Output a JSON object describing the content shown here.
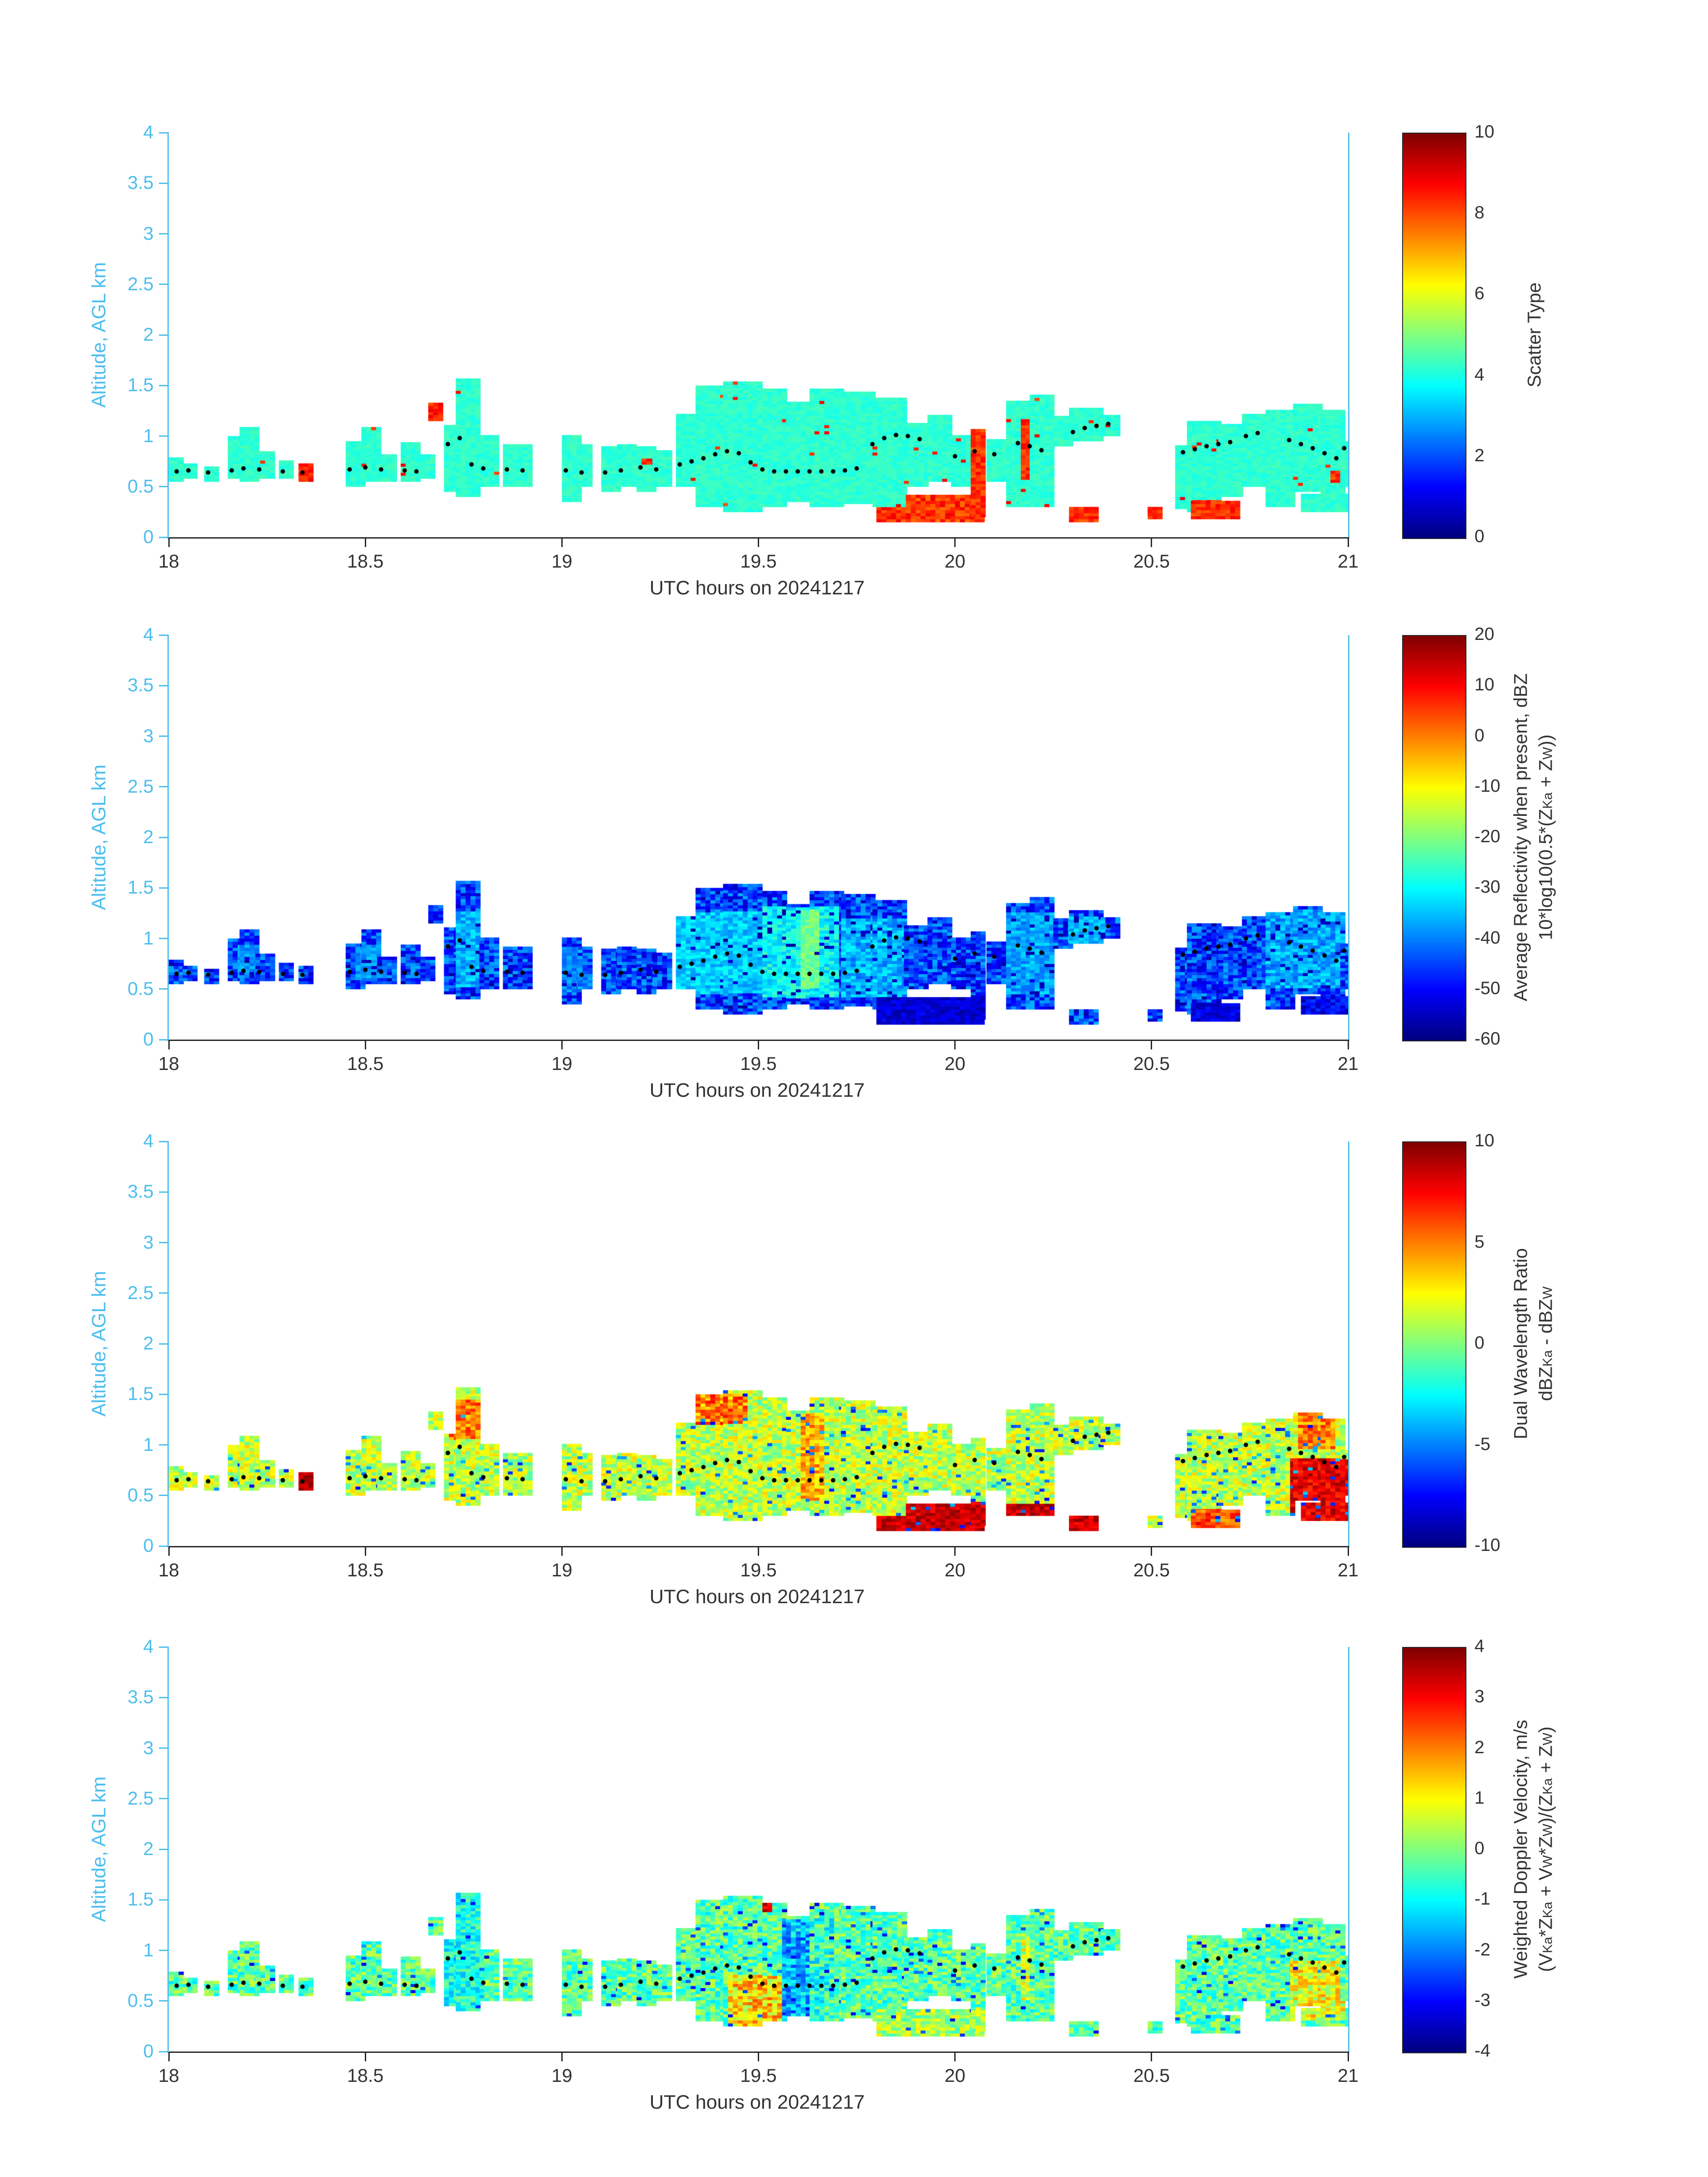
{
  "chart_data": {
    "type": "heatmap",
    "x_label": "UTC hours on 20241217",
    "y_label": "Altitude, AGL km",
    "x_range": [
      18,
      21
    ],
    "y_range": [
      0,
      4
    ],
    "x_tick_labels": [
      "18",
      "18.5",
      "19",
      "19.5",
      "20",
      "20.5",
      "21"
    ],
    "y_tick_labels": [
      "0",
      "0.5",
      "1",
      "1.5",
      "2",
      "2.5",
      "3",
      "3.5",
      "4"
    ],
    "axis_color_y": "#4DBEEE",
    "axis_color_x": "#262626",
    "colormap": "jet",
    "cell_dt_hours": 0.0125,
    "cell_dz_km": 0.03,
    "cloud_mask_rects": [
      [
        18.0,
        18.035,
        0.55,
        0.78
      ],
      [
        18.035,
        18.07,
        0.58,
        0.72
      ],
      [
        18.09,
        18.12,
        0.55,
        0.7
      ],
      [
        18.15,
        18.18,
        0.58,
        1.0
      ],
      [
        18.18,
        18.22,
        0.55,
        1.08
      ],
      [
        18.22,
        18.27,
        0.58,
        0.85
      ],
      [
        18.28,
        18.31,
        0.58,
        0.75
      ],
      [
        18.33,
        18.36,
        0.55,
        0.72
      ],
      [
        18.45,
        18.49,
        0.5,
        0.95
      ],
      [
        18.49,
        18.53,
        0.55,
        1.08
      ],
      [
        18.53,
        18.57,
        0.55,
        0.82
      ],
      [
        18.59,
        18.64,
        0.55,
        0.92
      ],
      [
        18.64,
        18.67,
        0.58,
        0.8
      ],
      [
        18.66,
        18.69,
        1.15,
        1.32
      ],
      [
        18.7,
        18.73,
        0.45,
        1.1
      ],
      [
        18.73,
        18.79,
        0.4,
        1.55
      ],
      [
        18.79,
        18.83,
        0.5,
        1.0
      ],
      [
        18.85,
        18.92,
        0.5,
        0.9
      ],
      [
        19.0,
        19.04,
        0.35,
        1.0
      ],
      [
        19.04,
        19.07,
        0.5,
        0.9
      ],
      [
        19.1,
        19.14,
        0.45,
        0.88
      ],
      [
        19.14,
        19.19,
        0.5,
        0.92
      ],
      [
        19.19,
        19.23,
        0.45,
        0.9
      ],
      [
        19.23,
        19.27,
        0.5,
        0.85
      ],
      [
        19.29,
        19.34,
        0.5,
        1.2
      ],
      [
        19.34,
        19.41,
        0.3,
        1.48
      ],
      [
        19.41,
        19.51,
        0.25,
        1.52
      ],
      [
        19.51,
        19.57,
        0.3,
        1.45
      ],
      [
        19.57,
        19.63,
        0.35,
        1.32
      ],
      [
        19.63,
        19.71,
        0.3,
        1.46
      ],
      [
        19.71,
        19.79,
        0.33,
        1.42
      ],
      [
        19.79,
        19.87,
        0.3,
        1.36
      ],
      [
        19.8,
        20.07,
        0.15,
        0.42
      ],
      [
        19.87,
        19.93,
        0.5,
        1.12
      ],
      [
        19.93,
        19.99,
        0.55,
        1.2
      ],
      [
        19.99,
        20.03,
        0.5,
        1.0
      ],
      [
        20.04,
        20.07,
        0.2,
        1.05
      ],
      [
        20.08,
        20.12,
        0.55,
        0.95
      ],
      [
        20.13,
        20.19,
        0.3,
        1.35
      ],
      [
        20.19,
        20.25,
        0.3,
        1.4
      ],
      [
        20.25,
        20.29,
        0.9,
        1.2
      ],
      [
        20.29,
        20.37,
        0.95,
        1.26
      ],
      [
        20.29,
        20.36,
        0.15,
        0.3
      ],
      [
        20.37,
        20.41,
        1.0,
        1.2
      ],
      [
        20.49,
        20.52,
        0.18,
        0.3
      ],
      [
        20.56,
        20.61,
        0.28,
        0.9
      ],
      [
        20.59,
        20.67,
        0.25,
        1.15
      ],
      [
        20.6,
        20.72,
        0.18,
        0.36
      ],
      [
        20.67,
        20.73,
        0.4,
        1.1
      ],
      [
        20.73,
        20.79,
        0.5,
        1.2
      ],
      [
        20.79,
        20.86,
        0.3,
        1.26
      ],
      [
        20.86,
        20.93,
        0.45,
        1.3
      ],
      [
        20.93,
        20.99,
        0.3,
        1.25
      ],
      [
        20.98,
        21.0,
        0.5,
        0.95
      ],
      [
        20.88,
        21.0,
        0.25,
        0.42
      ]
    ],
    "melting_layer_dots": [
      [
        18.02,
        0.65
      ],
      [
        18.05,
        0.66
      ],
      [
        18.1,
        0.64
      ],
      [
        18.16,
        0.66
      ],
      [
        18.19,
        0.68
      ],
      [
        18.23,
        0.67
      ],
      [
        18.29,
        0.65
      ],
      [
        18.34,
        0.64
      ],
      [
        18.46,
        0.67
      ],
      [
        18.5,
        0.69
      ],
      [
        18.54,
        0.67
      ],
      [
        18.6,
        0.66
      ],
      [
        18.63,
        0.65
      ],
      [
        18.71,
        0.92
      ],
      [
        18.74,
        0.98
      ],
      [
        18.77,
        0.72
      ],
      [
        18.8,
        0.68
      ],
      [
        18.86,
        0.67
      ],
      [
        18.9,
        0.66
      ],
      [
        19.01,
        0.66
      ],
      [
        19.05,
        0.64
      ],
      [
        19.11,
        0.64
      ],
      [
        19.15,
        0.66
      ],
      [
        19.2,
        0.69
      ],
      [
        19.24,
        0.67
      ],
      [
        19.3,
        0.72
      ],
      [
        19.33,
        0.75
      ],
      [
        19.36,
        0.78
      ],
      [
        19.39,
        0.82
      ],
      [
        19.42,
        0.85
      ],
      [
        19.45,
        0.83
      ],
      [
        19.48,
        0.74
      ],
      [
        19.51,
        0.67
      ],
      [
        19.54,
        0.65
      ],
      [
        19.57,
        0.65
      ],
      [
        19.6,
        0.65
      ],
      [
        19.63,
        0.65
      ],
      [
        19.66,
        0.65
      ],
      [
        19.69,
        0.65
      ],
      [
        19.72,
        0.66
      ],
      [
        19.75,
        0.68
      ],
      [
        19.79,
        0.92
      ],
      [
        19.82,
        0.98
      ],
      [
        19.85,
        1.01
      ],
      [
        19.88,
        1.0
      ],
      [
        19.91,
        0.97
      ],
      [
        20.0,
        0.8
      ],
      [
        20.05,
        0.85
      ],
      [
        20.1,
        0.82
      ],
      [
        20.16,
        0.93
      ],
      [
        20.19,
        0.9
      ],
      [
        20.22,
        0.86
      ],
      [
        20.3,
        1.04
      ],
      [
        20.33,
        1.08
      ],
      [
        20.36,
        1.1
      ],
      [
        20.39,
        1.12
      ],
      [
        20.58,
        0.84
      ],
      [
        20.61,
        0.87
      ],
      [
        20.64,
        0.9
      ],
      [
        20.67,
        0.92
      ],
      [
        20.7,
        0.94
      ],
      [
        20.74,
        1.0
      ],
      [
        20.77,
        1.03
      ],
      [
        20.85,
        0.96
      ],
      [
        20.88,
        0.92
      ],
      [
        20.91,
        0.88
      ],
      [
        20.94,
        0.83
      ],
      [
        20.97,
        0.78
      ],
      [
        20.99,
        0.88
      ]
    ],
    "panels": [
      {
        "name": "Scatter Type",
        "vmin": 0,
        "vmax": 10,
        "colorbar_ticks": [
          "0",
          "2",
          "4",
          "6",
          "8",
          "10"
        ],
        "base_value": 4.2,
        "jitter": 0.25,
        "speck_prob": 0.008,
        "speck_value": 8.5,
        "speck_jitter": 0.5,
        "overrides": [
          [
            18.33,
            18.36,
            0.55,
            0.72,
            8.5,
            0.5
          ],
          [
            18.66,
            18.69,
            1.15,
            1.32,
            8.5,
            0.5
          ],
          [
            19.2,
            19.23,
            0.7,
            0.78,
            8.5,
            0.5
          ],
          [
            19.8,
            20.07,
            0.15,
            0.3,
            8.3,
            0.7
          ],
          [
            19.87,
            20.07,
            0.3,
            0.42,
            8.3,
            0.7
          ],
          [
            20.04,
            20.07,
            0.2,
            1.05,
            8.3,
            0.5
          ],
          [
            20.16,
            20.19,
            0.55,
            1.15,
            8.3,
            0.5
          ],
          [
            20.29,
            20.36,
            0.15,
            0.3,
            8.3,
            0.5
          ],
          [
            20.49,
            20.52,
            0.18,
            0.3,
            8.3,
            0.5
          ],
          [
            20.6,
            20.72,
            0.18,
            0.36,
            8.3,
            0.5
          ],
          [
            20.74,
            20.78,
            0.2,
            0.3,
            8.3,
            0.5
          ],
          [
            20.95,
            20.98,
            0.52,
            0.65,
            8.3,
            0.5
          ]
        ],
        "label_lines": [
          [
            [
              "Scatter Type",
              0
            ]
          ]
        ]
      },
      {
        "name": "Average Reflectivity",
        "vmin": -60,
        "vmax": 20,
        "colorbar_ticks": [
          "-60",
          "-50",
          "-40",
          "-30",
          "-20",
          "-10",
          "0",
          "10",
          "20"
        ],
        "base_value": -45,
        "jitter": 9,
        "speck_prob": 0.06,
        "speck_value": -55,
        "speck_jitter": 3,
        "overrides": [
          [
            18.17,
            18.22,
            0.6,
            0.92,
            -38,
            4
          ],
          [
            18.47,
            18.53,
            0.58,
            0.92,
            -38,
            4
          ],
          [
            18.73,
            18.79,
            0.5,
            1.25,
            -36,
            5
          ],
          [
            19.0,
            19.05,
            0.45,
            0.92,
            -40,
            5
          ],
          [
            19.29,
            19.5,
            0.45,
            1.25,
            -34,
            5
          ],
          [
            19.51,
            19.7,
            0.4,
            1.3,
            -30,
            6
          ],
          [
            19.6,
            19.65,
            0.5,
            1.28,
            -21,
            4
          ],
          [
            19.71,
            19.87,
            0.4,
            1.2,
            -36,
            6
          ],
          [
            19.8,
            20.07,
            0.15,
            0.42,
            -53,
            4
          ],
          [
            20.13,
            20.25,
            0.45,
            1.25,
            -37,
            5
          ],
          [
            20.28,
            20.38,
            0.95,
            1.22,
            -35,
            4
          ],
          [
            20.6,
            20.72,
            0.18,
            0.36,
            -52,
            4
          ],
          [
            20.79,
            20.98,
            0.5,
            1.28,
            -37,
            6
          ],
          [
            20.88,
            21.0,
            0.25,
            0.42,
            -50,
            5
          ]
        ],
        "label_lines": [
          [
            [
              "Average Reflectivity when present, dBZ",
              0
            ]
          ],
          [
            [
              "10*log10(0.5*(Z",
              0
            ],
            [
              "Ka",
              1
            ],
            [
              " + Z",
              0
            ],
            [
              "W",
              1
            ],
            [
              "))",
              0
            ]
          ]
        ]
      },
      {
        "name": "Dual Wavelength Ratio",
        "vmin": -10,
        "vmax": 10,
        "colorbar_ticks": [
          "-10",
          "-5",
          "0",
          "5",
          "10"
        ],
        "base_value": 1.2,
        "jitter": 2.2,
        "speck_prob": 0.05,
        "speck_value": -5.5,
        "speck_jitter": 2,
        "overrides": [
          [
            18.33,
            18.36,
            0.55,
            0.72,
            9,
            1
          ],
          [
            18.71,
            18.79,
            1.05,
            1.45,
            5,
            2
          ],
          [
            19.34,
            19.46,
            1.2,
            1.5,
            5,
            2.5
          ],
          [
            19.6,
            19.66,
            0.45,
            1.3,
            4,
            2
          ],
          [
            19.55,
            20.36,
            0.15,
            0.3,
            8.5,
            1.3
          ],
          [
            19.87,
            20.36,
            0.3,
            0.42,
            8.5,
            1.3
          ],
          [
            20.6,
            20.72,
            0.18,
            0.36,
            6,
            2
          ],
          [
            20.85,
            21.0,
            0.25,
            0.85,
            8,
            1.5
          ],
          [
            20.87,
            20.96,
            0.95,
            1.3,
            5,
            2
          ]
        ],
        "label_lines": [
          [
            [
              "Dual Wavelength Ratio",
              0
            ]
          ],
          [
            [
              "dBZ",
              0
            ],
            [
              "Ka",
              1
            ],
            [
              " - dBZ",
              0
            ],
            [
              "W",
              1
            ]
          ]
        ]
      },
      {
        "name": "Weighted Doppler Velocity",
        "vmin": -4,
        "vmax": 4,
        "colorbar_ticks": [
          "-4",
          "-3",
          "-2",
          "-1",
          "0",
          "1",
          "2",
          "3",
          "4"
        ],
        "base_value": -0.3,
        "jitter": 0.9,
        "speck_prob": 0.04,
        "speck_value": -2.6,
        "speck_jitter": 0.8,
        "overrides": [
          [
            18.7,
            18.8,
            0.4,
            1.55,
            -0.8,
            0.8
          ],
          [
            19.42,
            19.56,
            0.2,
            0.75,
            1.3,
            1.1
          ],
          [
            19.5,
            19.53,
            1.38,
            1.5,
            3.3,
            0.5
          ],
          [
            19.56,
            19.62,
            0.2,
            1.3,
            -1.6,
            1.0
          ],
          [
            19.62,
            19.68,
            0.3,
            1.4,
            -0.6,
            1.0
          ],
          [
            19.8,
            20.07,
            0.15,
            0.42,
            0.3,
            0.9
          ],
          [
            20.16,
            20.19,
            0.5,
            1.15,
            0.6,
            0.9
          ],
          [
            20.85,
            20.98,
            0.3,
            0.9,
            0.9,
            1.0
          ]
        ],
        "label_lines": [
          [
            [
              "Weighted Doppler Velocity, m/s",
              0
            ]
          ],
          [
            [
              "(V",
              0
            ],
            [
              "Ka",
              1
            ],
            [
              "*Z",
              0
            ],
            [
              "Ka",
              1
            ],
            [
              " + V",
              0
            ],
            [
              "W",
              1
            ],
            [
              "*Z",
              0
            ],
            [
              "W",
              1
            ],
            [
              ")/(Z",
              0
            ],
            [
              "Ka",
              1
            ],
            [
              " + Z",
              0
            ],
            [
              "W",
              1
            ],
            [
              ")",
              0
            ]
          ]
        ]
      }
    ]
  }
}
